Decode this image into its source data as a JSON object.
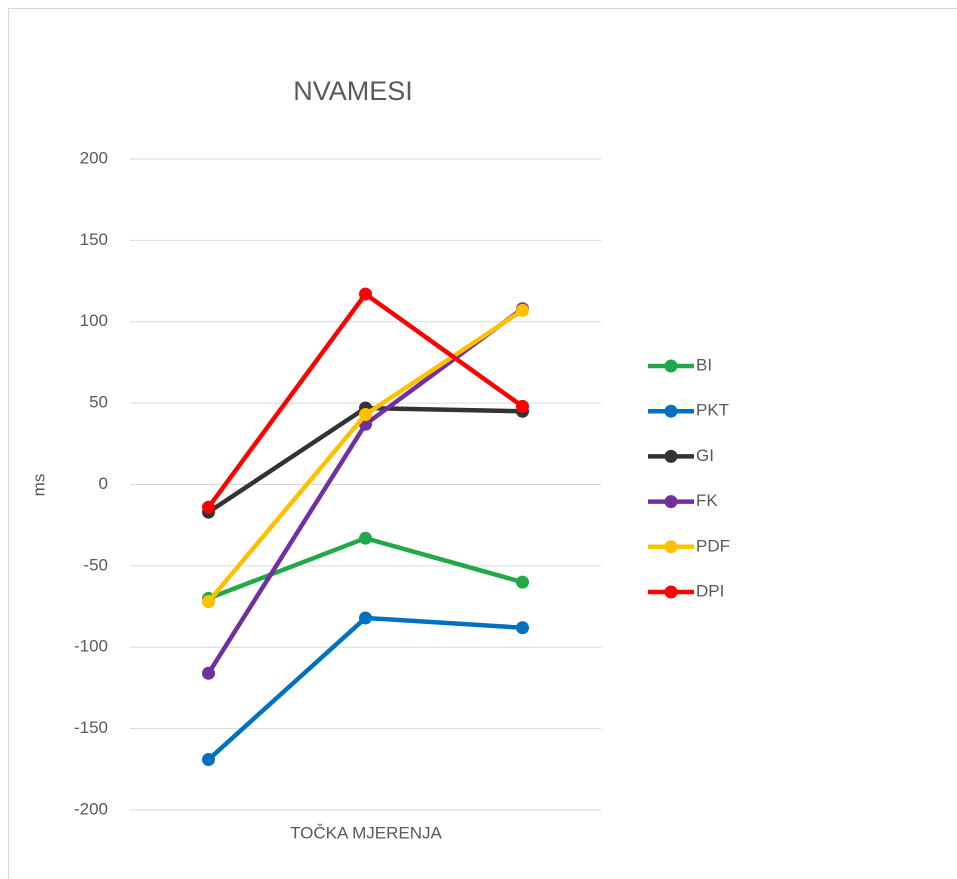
{
  "chart_data": {
    "type": "line",
    "title": "NVAMESI",
    "x_label": "TOČKA MJERENJA",
    "y_label": "ms",
    "categories": [
      null,
      null,
      null
    ],
    "series": [
      {
        "name": "BI",
        "color": "#21a849",
        "values": [
          -70,
          -33,
          -60
        ]
      },
      {
        "name": "PKT",
        "color": "#0070c0",
        "values": [
          -169,
          -82,
          -88
        ]
      },
      {
        "name": "GI",
        "color": "#333333",
        "values": [
          -17,
          47,
          45
        ]
      },
      {
        "name": "FK",
        "color": "#7030a0",
        "values": [
          -116,
          37,
          108
        ]
      },
      {
        "name": "PDF",
        "color": "#ffc000",
        "values": [
          -72,
          43,
          107
        ]
      },
      {
        "name": "DPI",
        "color": "#ff0000",
        "values": [
          -14,
          117,
          48
        ]
      }
    ],
    "ylim": [
      -200,
      200
    ],
    "yticks": [
      -200,
      -150,
      -100,
      -50,
      0,
      50,
      100,
      150,
      200
    ],
    "grid": true,
    "legend": "right"
  }
}
